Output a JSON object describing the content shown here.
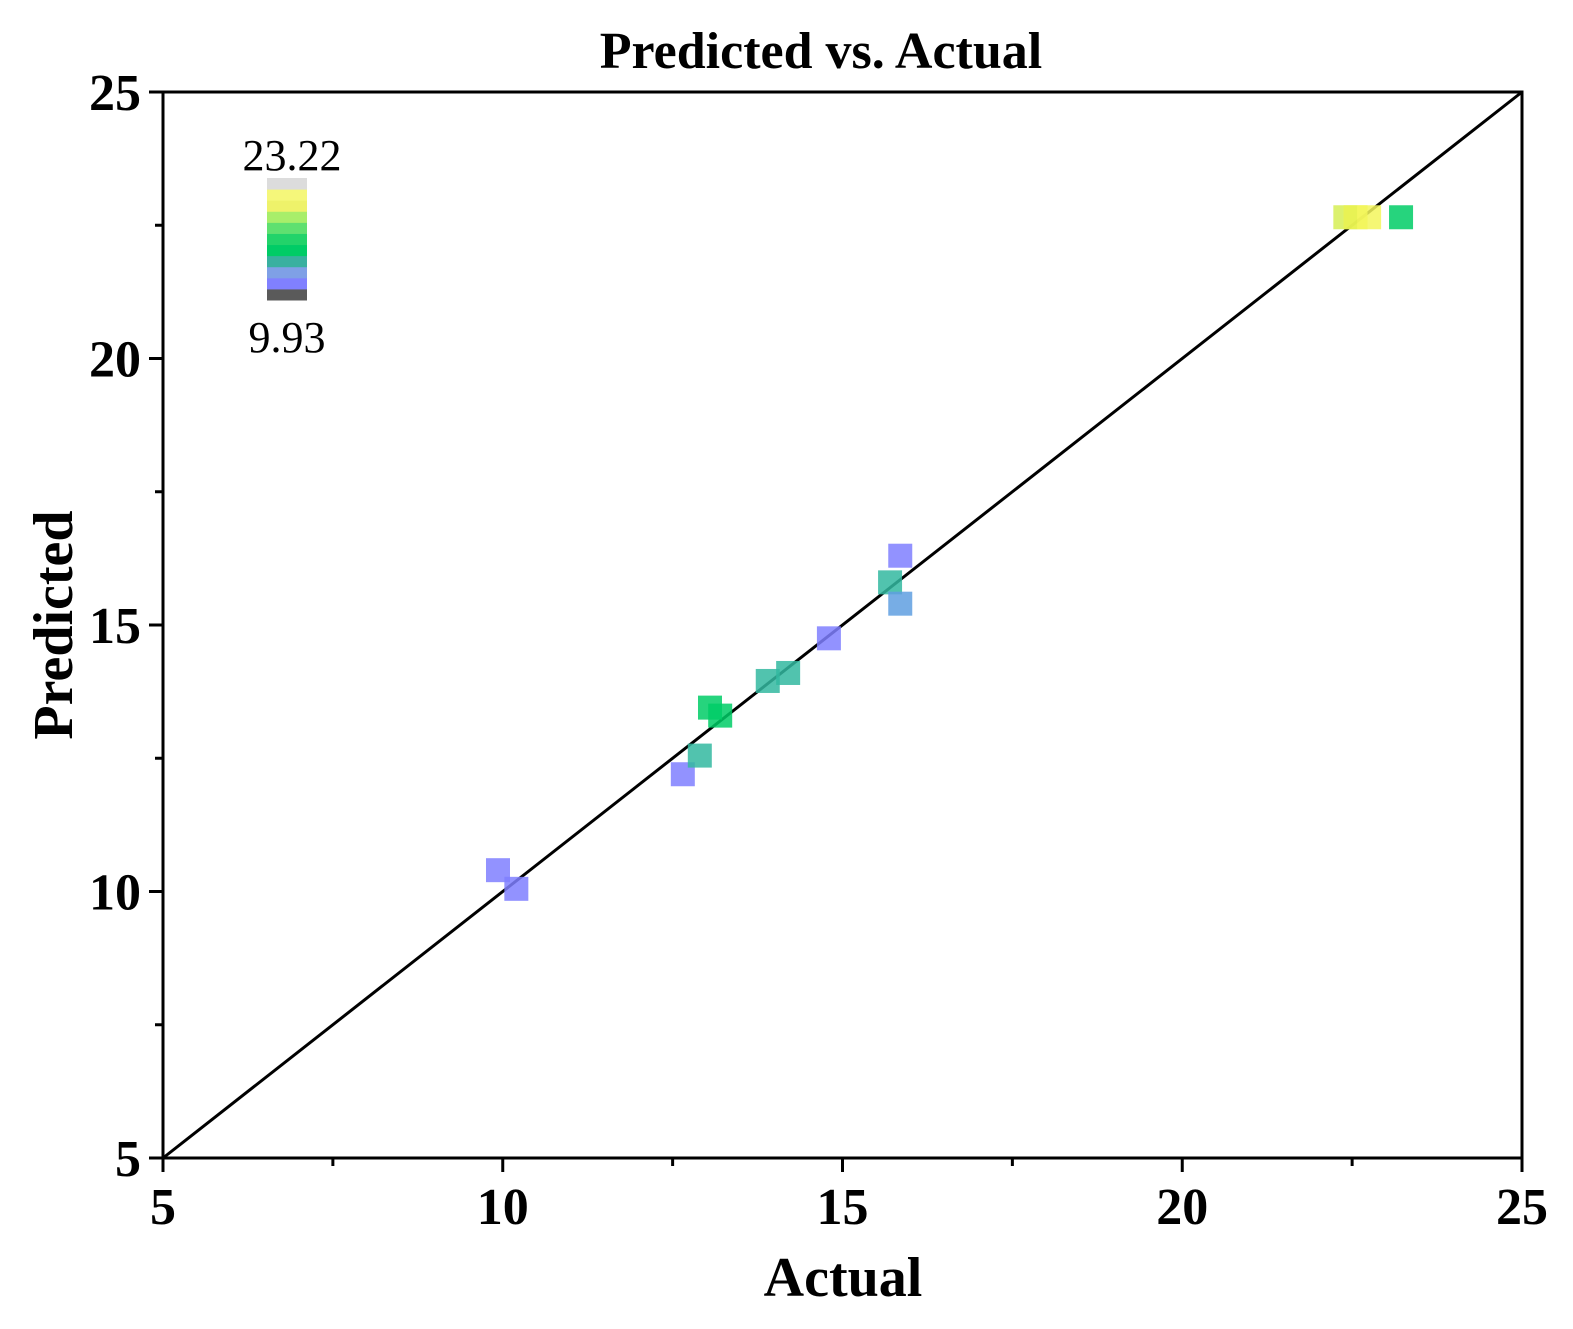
{
  "chart_data": {
    "type": "scatter",
    "title": "Predicted vs. Actual",
    "xlabel": "Actual",
    "ylabel": "Predicted",
    "xlim": [
      5,
      25
    ],
    "ylim": [
      5,
      25
    ],
    "xticks": [
      5,
      10,
      15,
      20,
      25
    ],
    "yticks": [
      5,
      10,
      15,
      20,
      25
    ],
    "grid": false,
    "reference_line": {
      "from": [
        5,
        5
      ],
      "to": [
        25,
        25
      ],
      "color": "#000000"
    },
    "colorbar": {
      "max_label": "23.22",
      "min_label": "9.93",
      "max": 23.22,
      "min": 9.93,
      "colors": [
        "#5a5a5a",
        "#8080ff",
        "#7fa0e6",
        "#39b0a0",
        "#00cc66",
        "#22d36a",
        "#5fe070",
        "#a8ee6a",
        "#eef26a",
        "#f5f77a",
        "#dcdcdc"
      ]
    },
    "points": [
      {
        "x": 9.93,
        "y": 10.4,
        "color": "#7f7fff"
      },
      {
        "x": 10.2,
        "y": 10.05,
        "color": "#7f7fff"
      },
      {
        "x": 12.65,
        "y": 12.2,
        "color": "#7f7fff"
      },
      {
        "x": 12.9,
        "y": 12.55,
        "color": "#33b8a0"
      },
      {
        "x": 13.05,
        "y": 13.45,
        "color": "#00cc66"
      },
      {
        "x": 13.2,
        "y": 13.3,
        "color": "#00cc66"
      },
      {
        "x": 13.9,
        "y": 13.95,
        "color": "#33b8a0"
      },
      {
        "x": 14.2,
        "y": 14.1,
        "color": "#33b8a0"
      },
      {
        "x": 14.8,
        "y": 14.75,
        "color": "#7f7fff"
      },
      {
        "x": 15.7,
        "y": 15.8,
        "color": "#33b8a0"
      },
      {
        "x": 15.85,
        "y": 16.3,
        "color": "#7f7fff"
      },
      {
        "x": 15.85,
        "y": 15.4,
        "color": "#5f9fe0"
      },
      {
        "x": 22.4,
        "y": 22.65,
        "color": "#d6ee55"
      },
      {
        "x": 22.55,
        "y": 22.65,
        "color": "#eaf250"
      },
      {
        "x": 22.75,
        "y": 22.65,
        "color": "#f3f65c"
      },
      {
        "x": 23.22,
        "y": 22.65,
        "color": "#00cc66"
      }
    ]
  }
}
